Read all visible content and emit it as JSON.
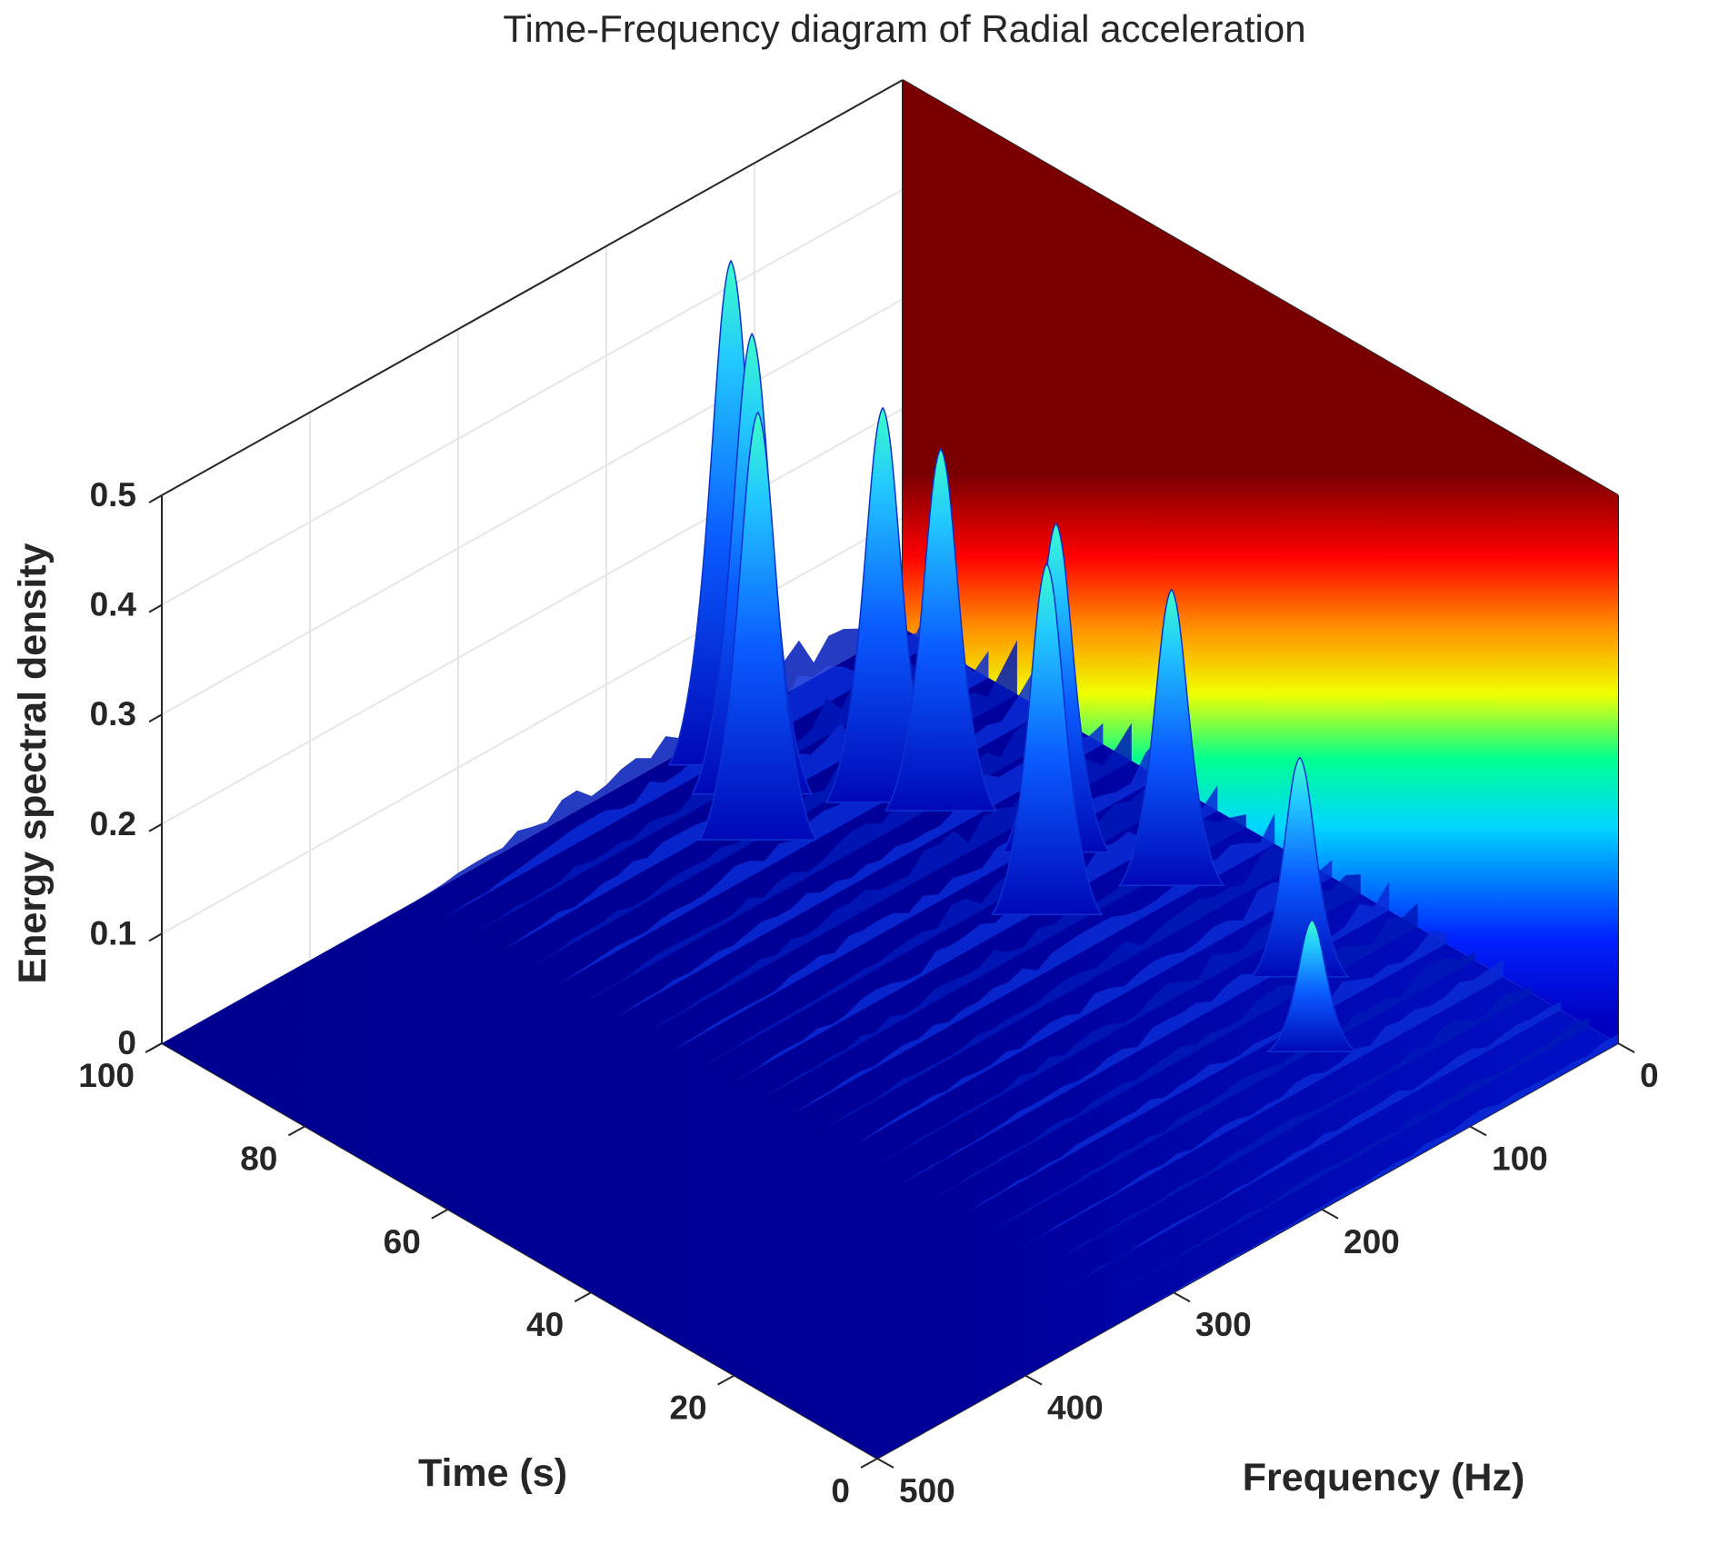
{
  "chart_data": {
    "type": "surface3d",
    "title": "Time-Frequency diagram of Radial acceleration",
    "xlabel": "Time (s)",
    "ylabel": "Frequency (Hz)",
    "zlabel": "Energy spectral density",
    "xlim": [
      0,
      100
    ],
    "ylim": [
      0,
      500
    ],
    "zlim": [
      0,
      0.5
    ],
    "xticks": [
      "0",
      "20",
      "40",
      "60",
      "80",
      "100"
    ],
    "yticks": [
      "0",
      "100",
      "200",
      "300",
      "400",
      "500"
    ],
    "zticks": [
      "0",
      "0.1",
      "0.2",
      "0.3",
      "0.4",
      "0.5"
    ],
    "grid": true,
    "colormap": "jet",
    "colorbar_on_back_wall": true,
    "peaks": [
      {
        "time": 95,
        "frequency": 140,
        "value": 0.46
      },
      {
        "time": 90,
        "frequency": 150,
        "value": 0.42
      },
      {
        "time": 84,
        "frequency": 175,
        "value": 0.39
      },
      {
        "time": 80,
        "frequency": 110,
        "value": 0.36
      },
      {
        "time": 75,
        "frequency": 95,
        "value": 0.33
      },
      {
        "time": 55,
        "frequency": 120,
        "value": 0.32
      },
      {
        "time": 62,
        "frequency": 80,
        "value": 0.3
      },
      {
        "time": 50,
        "frequency": 60,
        "value": 0.27
      },
      {
        "time": 30,
        "frequency": 70,
        "value": 0.2
      },
      {
        "time": 20,
        "frequency": 110,
        "value": 0.12
      }
    ]
  }
}
